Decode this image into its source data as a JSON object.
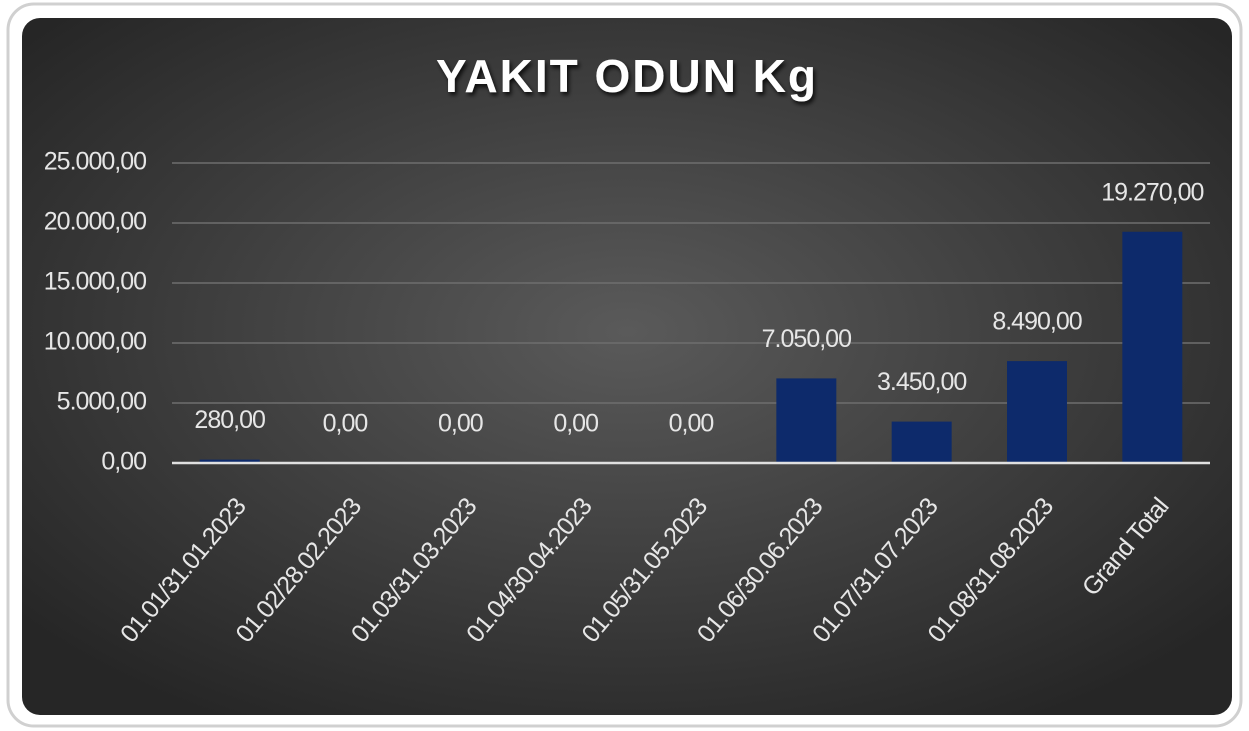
{
  "chart_data": {
    "type": "bar",
    "title": "YAKIT ODUN Kg",
    "categories": [
      "01.01/31.01.2023",
      "01.02/28.02.2023",
      "01.03/31.03.2023",
      "01.04/30.04.2023",
      "01.05/31.05.2023",
      "01.06/30.06.2023",
      "01.07/31.07.2023",
      "01.08/31.08.2023",
      "Grand Total"
    ],
    "values": [
      280,
      0,
      0,
      0,
      0,
      7050,
      3450,
      8490,
      19270
    ],
    "value_labels": [
      "280,00",
      "0,00",
      "0,00",
      "0,00",
      "0,00",
      "7.050,00",
      "3.450,00",
      "8.490,00",
      "19.270,00"
    ],
    "color": "#0d2a6b",
    "ylim": [
      0,
      25000
    ],
    "yticks": [
      {
        "value": 0,
        "label": "0,00"
      },
      {
        "value": 5000,
        "label": "5.000,00"
      },
      {
        "value": 10000,
        "label": "10.000,00"
      },
      {
        "value": 15000,
        "label": "15.000,00"
      },
      {
        "value": 20000,
        "label": "20.000,00"
      },
      {
        "value": 25000,
        "label": "25.000,00"
      }
    ],
    "grid": true
  }
}
